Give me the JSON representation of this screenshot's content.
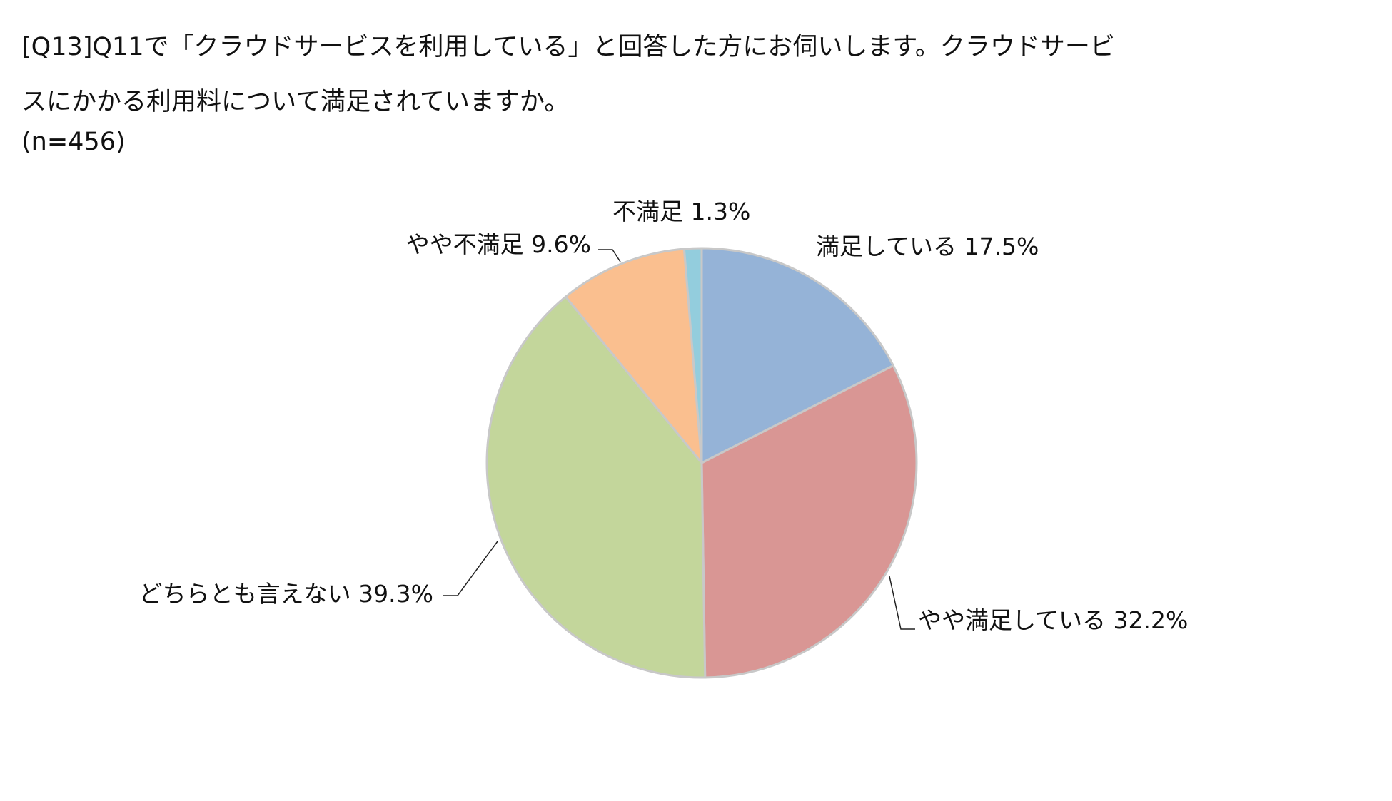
{
  "question": {
    "text": "[Q13]Q11で「クラウドサービスを利用している」と回答した方にお伺いします。クラウドサービスにかかる利用料について満足されていますか。",
    "sample_size": "(n=456)"
  },
  "chart_data": {
    "type": "pie",
    "categories": [
      "満足している",
      "やや満足している",
      "どちらとも言えない",
      "やや不満足",
      "不満足"
    ],
    "values": [
      17.5,
      32.2,
      39.3,
      9.6,
      1.3
    ],
    "data_labels": [
      "満足している 17.5%",
      "やや満足している 32.2%",
      "どちらとも言えない 39.3%",
      "やや不満足 9.6%",
      "不満足 1.3%"
    ],
    "colors": [
      "#95b3d7",
      "#d99694",
      "#c3d69b",
      "#fabf8f",
      "#93cddd"
    ],
    "slice_border_color": "#c8c8c8",
    "start": "12 o'clock, clockwise",
    "legend": "none (data labels)"
  }
}
